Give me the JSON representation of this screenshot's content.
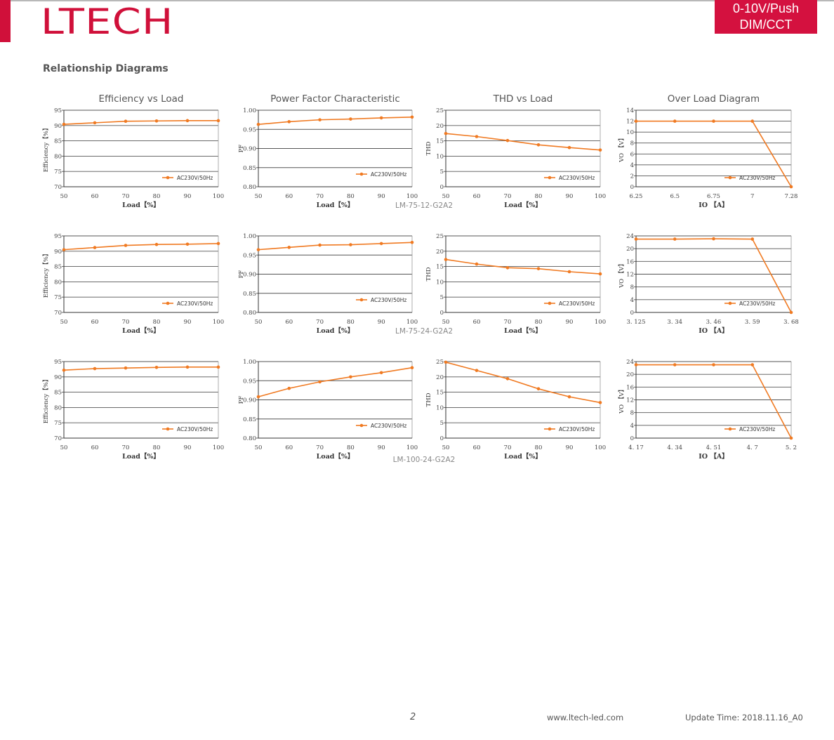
{
  "header": {
    "logo": "LTECH",
    "badge_line1": "0-10V/Push",
    "badge_line2": "DIM/CCT"
  },
  "section_title": "Relationship Diagrams",
  "legend_label": "AC230V/50Hz",
  "colors": {
    "brand": "#d0103a",
    "series": "#f07a22",
    "grid": "#555555"
  },
  "footer": {
    "page": "2",
    "website": "www.ltech-led.com",
    "update": "Update Time: 2018.11.16_A0"
  },
  "chart_data": [
    {
      "row": 0,
      "col": 0,
      "type": "line",
      "title": "Efficiency vs Load",
      "xlabel": "Load【%】",
      "ylabel": "Efficiency【%】",
      "x": [
        "50",
        "60",
        "70",
        "80",
        "90",
        "100"
      ],
      "yticks": [
        "70",
        "75",
        "80",
        "85",
        "90",
        "95"
      ],
      "ylim": [
        70,
        95
      ],
      "series": [
        {
          "name": "AC230V/50Hz",
          "values": [
            90.4,
            90.9,
            91.4,
            91.5,
            91.6,
            91.6
          ]
        }
      ]
    },
    {
      "row": 0,
      "col": 1,
      "type": "line",
      "title": "Power Factor Characteristic",
      "xlabel": "Load【%】",
      "ylabel": "PF",
      "x": [
        "50",
        "60",
        "70",
        "80",
        "90",
        "100"
      ],
      "yticks": [
        "0.80",
        "0.85",
        "0.90",
        "0.95",
        "1.00"
      ],
      "ylim": [
        0.8,
        1.0
      ],
      "series": [
        {
          "name": "AC230V/50Hz",
          "values": [
            0.963,
            0.97,
            0.975,
            0.977,
            0.98,
            0.982
          ]
        }
      ]
    },
    {
      "row": 0,
      "col": 2,
      "type": "line",
      "title": "THD vs Load",
      "xlabel": "Load【%】",
      "ylabel": "THD",
      "x": [
        "50",
        "60",
        "70",
        "80",
        "90",
        "100"
      ],
      "yticks": [
        "0",
        "5",
        "10",
        "15",
        "20",
        "25"
      ],
      "ylim": [
        0,
        25
      ],
      "series": [
        {
          "name": "AC230V/50Hz",
          "values": [
            17.4,
            16.4,
            15.1,
            13.7,
            12.8,
            12.0
          ]
        }
      ]
    },
    {
      "row": 0,
      "col": 3,
      "type": "line",
      "title": "Over Load Diagram",
      "xlabel": "IO 【A】",
      "ylabel": "VO 【V】",
      "x": [
        "6.25",
        "6.5",
        "6.75",
        "7",
        "7.28"
      ],
      "yticks": [
        "0",
        "2",
        "4",
        "6",
        "8",
        "10",
        "12",
        "14"
      ],
      "ylim": [
        0,
        14
      ],
      "series": [
        {
          "name": "AC230V/50Hz",
          "values": [
            12,
            12,
            12,
            12,
            0
          ]
        }
      ]
    },
    {
      "row": 1,
      "col": 0,
      "type": "line",
      "title": "",
      "xlabel": "Load【%】",
      "ylabel": "Efficiency【%】",
      "x": [
        "50",
        "60",
        "70",
        "80",
        "90",
        "100"
      ],
      "yticks": [
        "70",
        "75",
        "80",
        "85",
        "90",
        "95"
      ],
      "ylim": [
        70,
        95
      ],
      "series": [
        {
          "name": "AC230V/50Hz",
          "values": [
            90.5,
            91.2,
            91.9,
            92.2,
            92.3,
            92.5
          ]
        }
      ]
    },
    {
      "row": 1,
      "col": 1,
      "type": "line",
      "title": "",
      "xlabel": "Load【%】",
      "ylabel": "PF",
      "x": [
        "50",
        "60",
        "70",
        "80",
        "90",
        "100"
      ],
      "yticks": [
        "0.80",
        "0.85",
        "0.90",
        "0.95",
        "1.00"
      ],
      "ylim": [
        0.8,
        1.0
      ],
      "series": [
        {
          "name": "AC230V/50Hz",
          "values": [
            0.964,
            0.97,
            0.976,
            0.977,
            0.98,
            0.983
          ]
        }
      ]
    },
    {
      "row": 1,
      "col": 2,
      "type": "line",
      "title": "",
      "xlabel": "Load【%】",
      "ylabel": "THD",
      "x": [
        "50",
        "60",
        "70",
        "80",
        "90",
        "100"
      ],
      "yticks": [
        "0",
        "5",
        "10",
        "15",
        "20",
        "25"
      ],
      "ylim": [
        0,
        25
      ],
      "series": [
        {
          "name": "AC230V/50Hz",
          "values": [
            17.3,
            15.8,
            14.6,
            14.3,
            13.3,
            12.6
          ]
        }
      ]
    },
    {
      "row": 1,
      "col": 3,
      "type": "line",
      "title": "",
      "xlabel": "IO 【A】",
      "ylabel": "VO 【V】",
      "x": [
        "3. 125",
        "3. 34",
        "3. 46",
        "3. 59",
        "3. 68"
      ],
      "yticks": [
        "0",
        "4",
        "8",
        "12",
        "16",
        "20",
        "24"
      ],
      "ylim": [
        0,
        24
      ],
      "series": [
        {
          "name": "AC230V/50Hz",
          "values": [
            23,
            23,
            23.1,
            23,
            0
          ]
        }
      ]
    },
    {
      "row": 2,
      "col": 0,
      "type": "line",
      "title": "",
      "xlabel": "Load【%】",
      "ylabel": "Efficiency【%】",
      "x": [
        "50",
        "60",
        "70",
        "80",
        "90",
        "100"
      ],
      "yticks": [
        "70",
        "75",
        "80",
        "85",
        "90",
        "95"
      ],
      "ylim": [
        70,
        95
      ],
      "series": [
        {
          "name": "AC230V/50Hz",
          "values": [
            92.2,
            92.7,
            92.9,
            93.1,
            93.2,
            93.2
          ]
        }
      ]
    },
    {
      "row": 2,
      "col": 1,
      "type": "line",
      "title": "",
      "xlabel": "Load【%】",
      "ylabel": "PF",
      "x": [
        "50",
        "60",
        "70",
        "80",
        "90",
        "100"
      ],
      "yticks": [
        "0.80",
        "0.85",
        "0.90",
        "0.95",
        "1.00"
      ],
      "ylim": [
        0.8,
        1.0
      ],
      "series": [
        {
          "name": "AC230V/50Hz",
          "values": [
            0.908,
            0.93,
            0.947,
            0.96,
            0.971,
            0.984
          ]
        }
      ]
    },
    {
      "row": 2,
      "col": 2,
      "type": "line",
      "title": "",
      "xlabel": "Load【%】",
      "ylabel": "THD",
      "x": [
        "50",
        "60",
        "70",
        "80",
        "90",
        "100"
      ],
      "yticks": [
        "0",
        "5",
        "10",
        "15",
        "20",
        "25"
      ],
      "ylim": [
        0,
        25
      ],
      "series": [
        {
          "name": "AC230V/50Hz",
          "values": [
            24.8,
            22.1,
            19.4,
            16.1,
            13.5,
            11.6
          ]
        }
      ]
    },
    {
      "row": 2,
      "col": 3,
      "type": "line",
      "title": "",
      "xlabel": "IO 【A】",
      "ylabel": "VO 【V】",
      "x": [
        "4. 17",
        "4. 34",
        "4. 51",
        "4. 7",
        "5. 2"
      ],
      "yticks": [
        "0",
        "4",
        "8",
        "12",
        "16",
        "20",
        "24"
      ],
      "ylim": [
        0,
        24
      ],
      "series": [
        {
          "name": "AC230V/50Hz",
          "values": [
            23,
            23,
            23,
            23,
            0
          ]
        }
      ]
    }
  ],
  "models": [
    "LM-75-12-G2A2",
    "LM-75-24-G2A2",
    "LM-100-24-G2A2"
  ]
}
